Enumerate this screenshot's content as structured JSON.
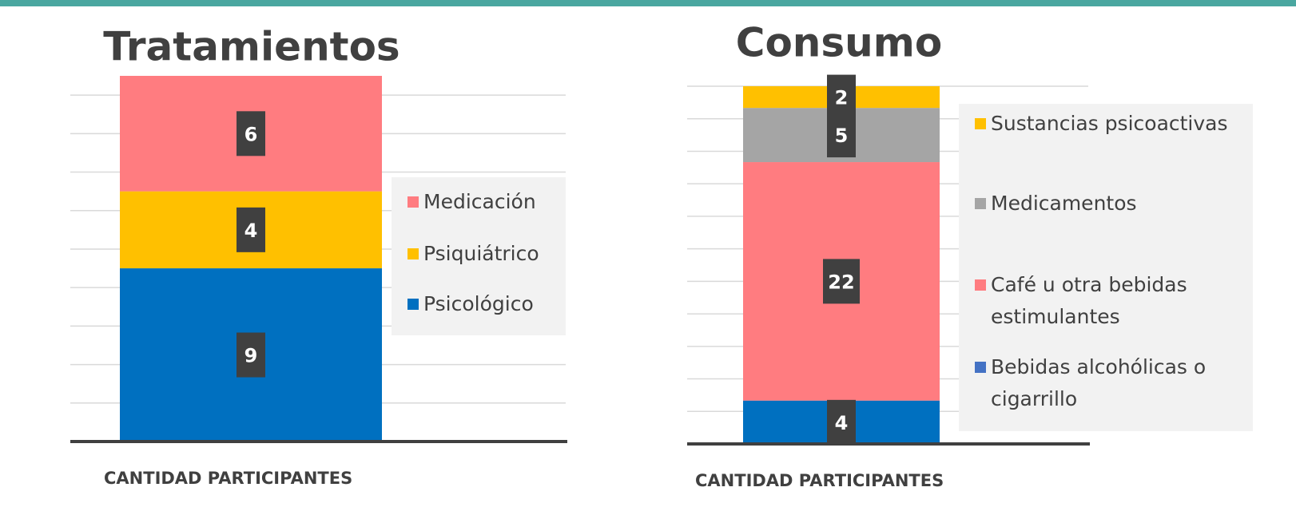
{
  "chart_data": [
    {
      "type": "stacked_bar",
      "title": "Tratamientos",
      "x_label": "CANTIDAD PARTICIPANTES",
      "categories": [
        null
      ],
      "series": [
        {
          "name": "Psicológico",
          "color": "#0070c0",
          "values": [
            9
          ]
        },
        {
          "name": "Psiquiátrico",
          "color": "#ffc000",
          "values": [
            4
          ]
        },
        {
          "name": "Medicación",
          "color": "#ff7c80",
          "values": [
            6
          ]
        }
      ],
      "ylim": [
        0,
        19
      ],
      "yticks": [
        0,
        2,
        4,
        6,
        8,
        10,
        12,
        14,
        16,
        18
      ],
      "grid": true,
      "legend": "right"
    },
    {
      "type": "stacked_bar",
      "title": "Consumo",
      "x_label": "CANTIDAD PARTICIPANTES",
      "categories": [
        null
      ],
      "series": [
        {
          "name": "Bebidas alcohólicas o cigarrillo",
          "color": "#0070c0",
          "legend_color": "#4472c4",
          "values": [
            4
          ]
        },
        {
          "name": "Café u otra bebidas estimulantes",
          "color": "#ff7c80",
          "values": [
            22
          ]
        },
        {
          "name": "Medicamentos",
          "color": "#a5a5a5",
          "values": [
            5
          ]
        },
        {
          "name": "Sustancias psicoactivas",
          "color": "#ffc000",
          "values": [
            2
          ]
        }
      ],
      "ylim": [
        0,
        33
      ],
      "yticks": [
        0,
        3,
        6,
        9,
        12,
        15,
        18,
        21,
        24,
        27,
        30,
        33
      ],
      "grid": true,
      "legend": "right"
    }
  ]
}
